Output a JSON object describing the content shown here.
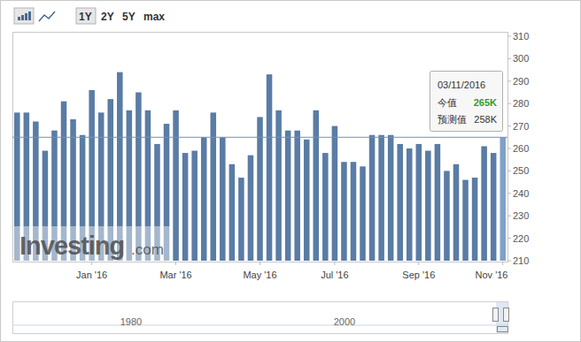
{
  "chart_data": {
    "type": "bar",
    "categories": [
      null,
      null,
      null,
      null,
      null,
      null,
      null,
      null,
      "Jan '16",
      null,
      null,
      null,
      null,
      null,
      null,
      null,
      null,
      "Mar '16",
      null,
      null,
      null,
      null,
      null,
      null,
      null,
      null,
      "May '16",
      null,
      null,
      null,
      null,
      null,
      null,
      null,
      "Jul '16",
      null,
      null,
      null,
      null,
      null,
      null,
      null,
      null,
      "Sep '16",
      null,
      null,
      null,
      null,
      null,
      null,
      null,
      null,
      "Nov '16"
    ],
    "values": [
      276,
      276,
      272,
      259,
      268,
      281,
      273,
      266,
      286,
      276,
      282,
      294,
      277,
      285,
      277,
      262,
      271,
      277,
      258,
      259,
      265,
      276,
      265,
      253,
      247,
      257,
      274,
      293,
      277,
      268,
      268,
      264,
      277,
      258,
      270,
      254,
      254,
      252,
      266,
      266,
      266,
      262,
      260,
      262,
      259,
      262,
      250,
      253,
      246,
      247,
      261,
      258,
      265
    ],
    "color": "#5a7ca5",
    "ylim": [
      210,
      310
    ],
    "yticks": [
      210,
      220,
      230,
      240,
      250,
      260,
      270,
      280,
      290,
      300,
      310
    ],
    "grid": false,
    "tooltip": {
      "date": "03/11/2016",
      "actual_label": "今值",
      "actual": "265K",
      "forecast_label": "预测值",
      "forecast": "258K"
    }
  },
  "toolbar": {
    "ranges": [
      "1Y",
      "2Y",
      "5Y",
      "max"
    ],
    "selected": "1Y"
  },
  "navigator": {
    "labels": [
      "1980",
      "2000"
    ]
  },
  "watermark": {
    "text": "Investing",
    "suffix": ".com"
  }
}
